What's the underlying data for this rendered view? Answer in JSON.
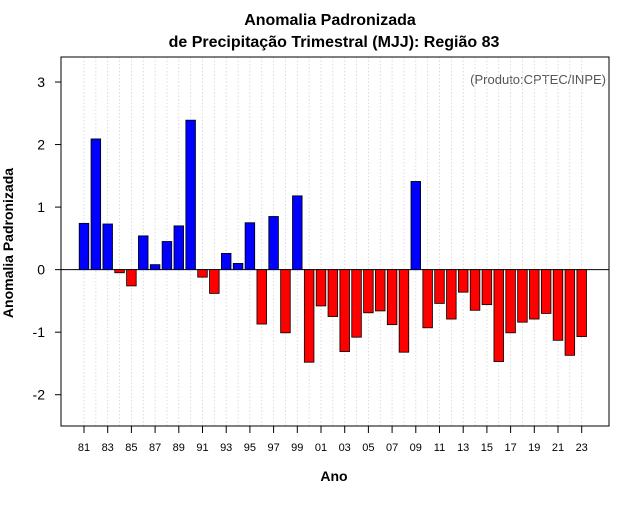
{
  "chart_data": {
    "type": "bar",
    "title": "Anomalia Padronizada",
    "subtitle": "de Precipitação Trimestral (MJJ): Região 83",
    "xlabel": "Ano",
    "ylabel": "Anomalia Padronizada",
    "annotation": "(Produto:CPTEC/INPE)",
    "ylim": [
      -2.5,
      3.4
    ],
    "yticks": [
      -2,
      -1,
      0,
      1,
      2,
      3
    ],
    "grid": "vertical dotted",
    "colors": {
      "positive": "#0000ff",
      "negative": "#ff0000",
      "outline": "#000000",
      "grid": "#d3d3d3"
    },
    "categories": [
      "81",
      "82",
      "83",
      "84",
      "85",
      "86",
      "87",
      "88",
      "89",
      "90",
      "91",
      "92",
      "93",
      "94",
      "95",
      "96",
      "97",
      "98",
      "99",
      "00",
      "01",
      "02",
      "03",
      "04",
      "05",
      "06",
      "07",
      "08",
      "09",
      "10",
      "11",
      "12",
      "13",
      "14",
      "15",
      "16",
      "17",
      "18",
      "19",
      "20",
      "21",
      "22",
      "23"
    ],
    "xtick_labels": [
      "81",
      "83",
      "85",
      "87",
      "89",
      "91",
      "93",
      "95",
      "97",
      "99",
      "01",
      "03",
      "05",
      "07",
      "09",
      "11",
      "13",
      "15",
      "17",
      "19",
      "21",
      "23"
    ],
    "values": [
      0.74,
      2.09,
      0.73,
      -0.05,
      -0.26,
      0.54,
      0.08,
      0.45,
      0.7,
      2.39,
      -0.12,
      -0.38,
      0.26,
      0.1,
      0.75,
      -0.87,
      0.85,
      -1.01,
      1.18,
      -1.48,
      -0.58,
      -0.75,
      -1.31,
      -1.08,
      -0.69,
      -0.66,
      -0.88,
      -1.32,
      1.41,
      -0.93,
      -0.54,
      -0.79,
      -0.36,
      -0.65,
      -0.56,
      -1.47,
      -1.01,
      -0.84,
      -0.79,
      -0.7,
      -1.13,
      -1.37,
      -1.07
    ]
  }
}
